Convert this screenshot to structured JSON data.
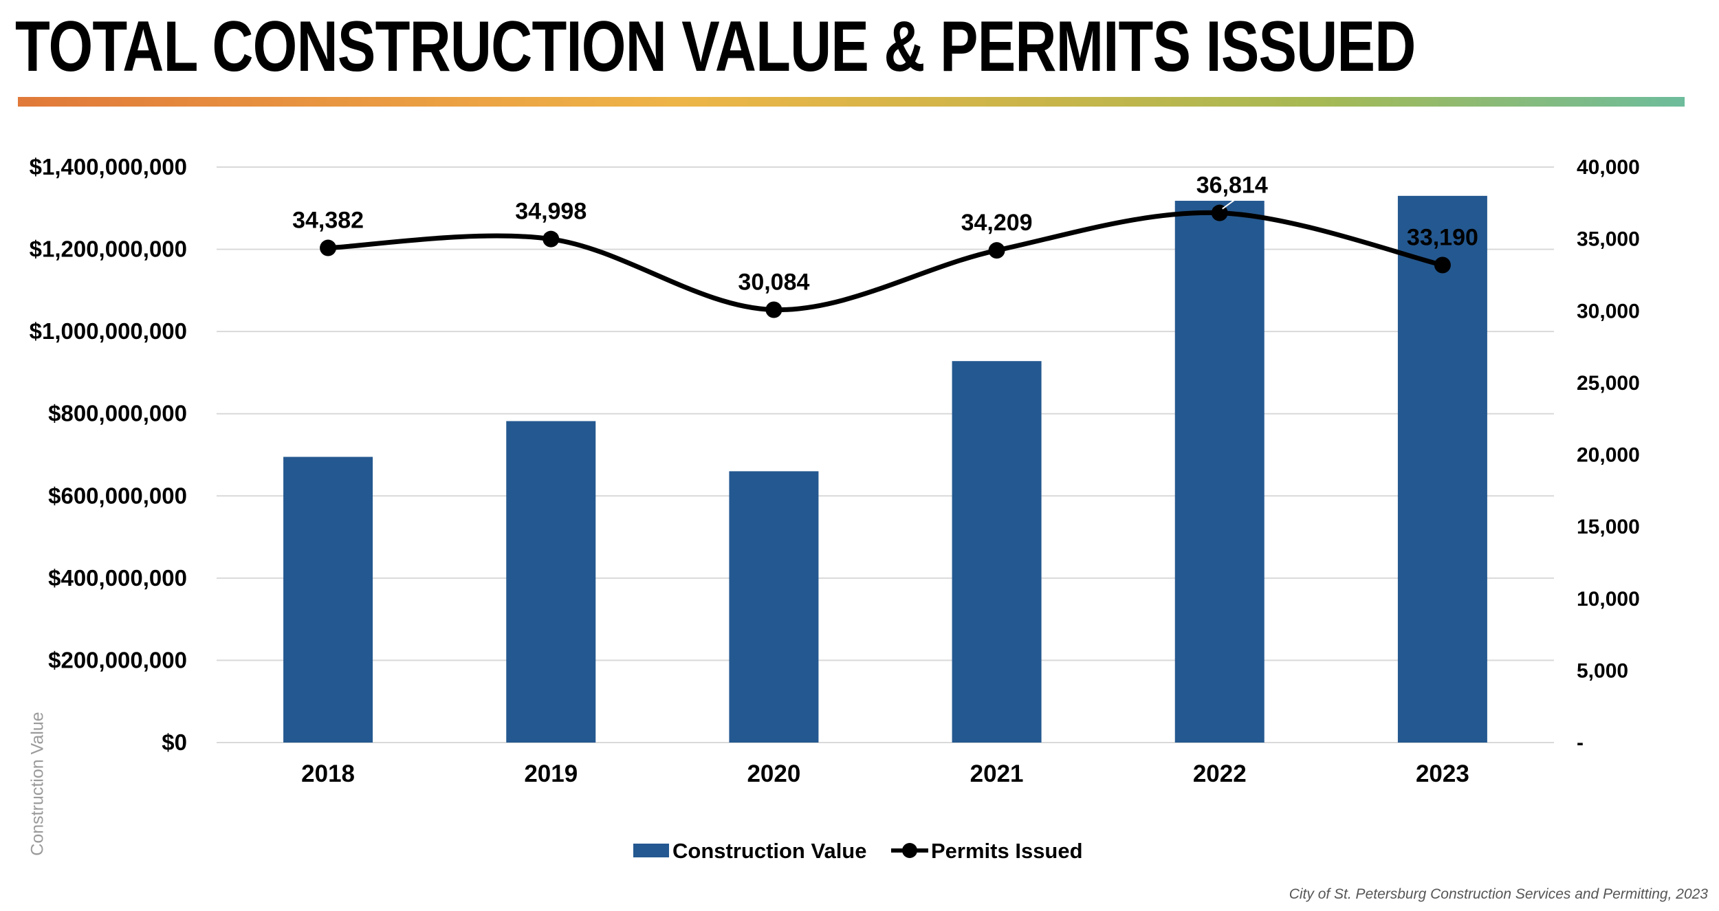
{
  "title": "TOTAL CONSTRUCTION VALUE & PERMITS ISSUED",
  "source": "City of St. Petersburg Construction Services and Permitting, 2023",
  "chart_data": {
    "type": "bar",
    "categories": [
      "2018",
      "2019",
      "2020",
      "2021",
      "2022",
      "2023"
    ],
    "series": [
      {
        "name": "Construction Value",
        "type": "bar",
        "axis": "left",
        "color": "#245890",
        "values": [
          695000000,
          782000000,
          660000000,
          928000000,
          1318000000,
          1330000000
        ]
      },
      {
        "name": "Permits Issued",
        "type": "line",
        "axis": "right",
        "color": "#000000",
        "values": [
          34382,
          34998,
          30084,
          34209,
          36814,
          33190
        ],
        "labels": [
          "34,382",
          "34,998",
          "30,084",
          "34,209",
          "36,814",
          "33,190"
        ]
      }
    ],
    "y_left": {
      "label": "Construction Value",
      "range": [
        0,
        1400000000
      ],
      "ticks": [
        0,
        200000000,
        400000000,
        600000000,
        800000000,
        1000000000,
        1200000000,
        1400000000
      ],
      "tick_labels": [
        "$0",
        "$200,000,000",
        "$400,000,000",
        "$600,000,000",
        "$800,000,000",
        "$1,000,000,000",
        "$1,200,000,000",
        "$1,400,000,000"
      ]
    },
    "y_right": {
      "range": [
        0,
        40000
      ],
      "ticks": [
        0,
        5000,
        10000,
        15000,
        20000,
        25000,
        30000,
        35000,
        40000
      ],
      "tick_labels": [
        "-",
        "5,000",
        "10,000",
        "15,000",
        "20,000",
        "25,000",
        "30,000",
        "35,000",
        "40,000"
      ]
    },
    "grid": true,
    "legend": "bottom-center",
    "gridline_color": "#d9d9d9"
  }
}
